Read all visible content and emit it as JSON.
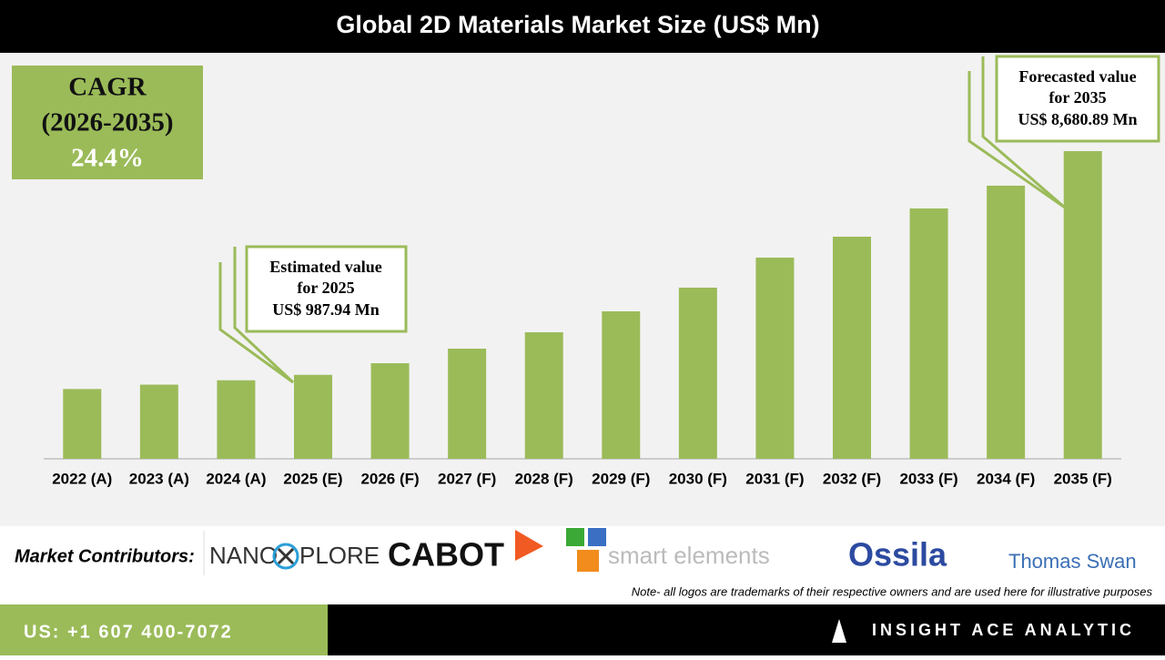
{
  "chart_data": {
    "type": "bar",
    "title": "Global 2D Materials Market Size (US$ Mn)",
    "categories": [
      "2022 (A)",
      "2023 (A)",
      "2024 (A)",
      "2025 (E)",
      "2026 (F)",
      "2027 (F)",
      "2028 (F)",
      "2029 (F)",
      "2030 (F)",
      "2031 (F)",
      "2032 (F)",
      "2033 (F)",
      "2034 (F)",
      "2035 (F)"
    ],
    "values": [
      500,
      650,
      800,
      987.94,
      1387,
      1888,
      2452,
      3172,
      3986,
      5019,
      5739,
      6710,
      7493,
      8680.89
    ],
    "color": "#9bbb59",
    "ylim": [
      -1900,
      12000
    ],
    "cagr": [
      "CAGR",
      "(2026-2035)",
      "24.4%"
    ],
    "estimated_note": [
      "Estimated value",
      "for 2025",
      "US$ 987.94 Mn"
    ],
    "forecast_note": [
      "Forecasted value",
      "for 2035",
      "US$ 8,680.89 Mn"
    ]
  },
  "footer": {
    "contributors_label": "Market Contributors:",
    "logos": [
      "NANO",
      "PLORE",
      "CABOT",
      "smart elements",
      "Ossila",
      "Thomas Swan"
    ],
    "note": "Note- all logos are trademarks of their respective owners and are used here for illustrative purposes",
    "phone": "US: +1 607 400-7072",
    "brand": "INSIGHT ACE ANALYTIC"
  }
}
